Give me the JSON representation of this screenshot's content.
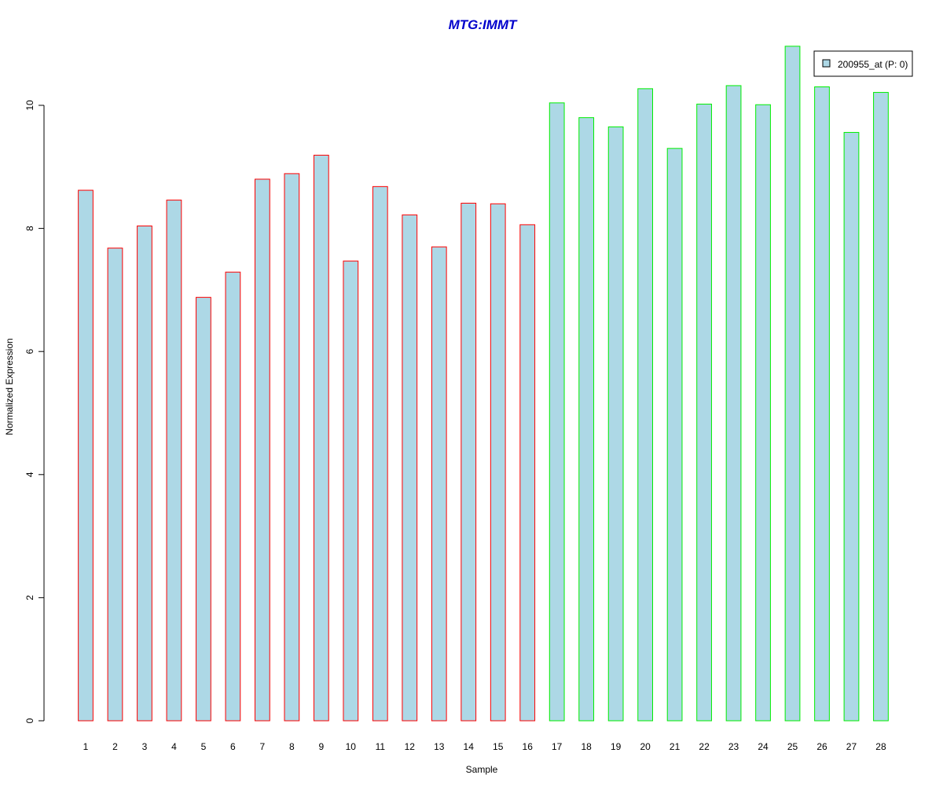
{
  "chart_data": {
    "type": "bar",
    "title": "MTG:IMMT",
    "xlabel": "Sample",
    "ylabel": "Normalized Expression",
    "categories": [
      "1",
      "2",
      "3",
      "4",
      "5",
      "6",
      "7",
      "8",
      "9",
      "10",
      "11",
      "12",
      "13",
      "14",
      "15",
      "16",
      "17",
      "18",
      "19",
      "20",
      "21",
      "22",
      "23",
      "24",
      "25",
      "26",
      "27",
      "28"
    ],
    "series": [
      {
        "name": "200955_at (P: 0)",
        "values": [
          8.62,
          7.68,
          8.04,
          8.46,
          6.88,
          7.29,
          8.8,
          8.89,
          9.19,
          7.47,
          8.68,
          8.22,
          7.7,
          8.41,
          8.4,
          8.06,
          10.04,
          9.8,
          9.65,
          10.27,
          9.3,
          10.02,
          10.32,
          10.01,
          10.96,
          10.3,
          9.56,
          10.21
        ]
      }
    ],
    "group_edge_colors": [
      "#ff0000",
      "#ff0000",
      "#ff0000",
      "#ff0000",
      "#ff0000",
      "#ff0000",
      "#ff0000",
      "#ff0000",
      "#ff0000",
      "#ff0000",
      "#ff0000",
      "#ff0000",
      "#ff0000",
      "#ff0000",
      "#ff0000",
      "#ff0000",
      "#00ee00",
      "#00ee00",
      "#00ee00",
      "#00ee00",
      "#00ee00",
      "#00ee00",
      "#00ee00",
      "#00ee00",
      "#00ee00",
      "#00ee00",
      "#00ee00",
      "#00ee00"
    ],
    "yticks": [
      "0",
      "2",
      "4",
      "6",
      "8",
      "10"
    ],
    "ylim": [
      0,
      11
    ],
    "grid": false,
    "legend_position": "top-right",
    "colors": {
      "bar_fill": "#add8e6",
      "title": "#0000cc"
    }
  }
}
